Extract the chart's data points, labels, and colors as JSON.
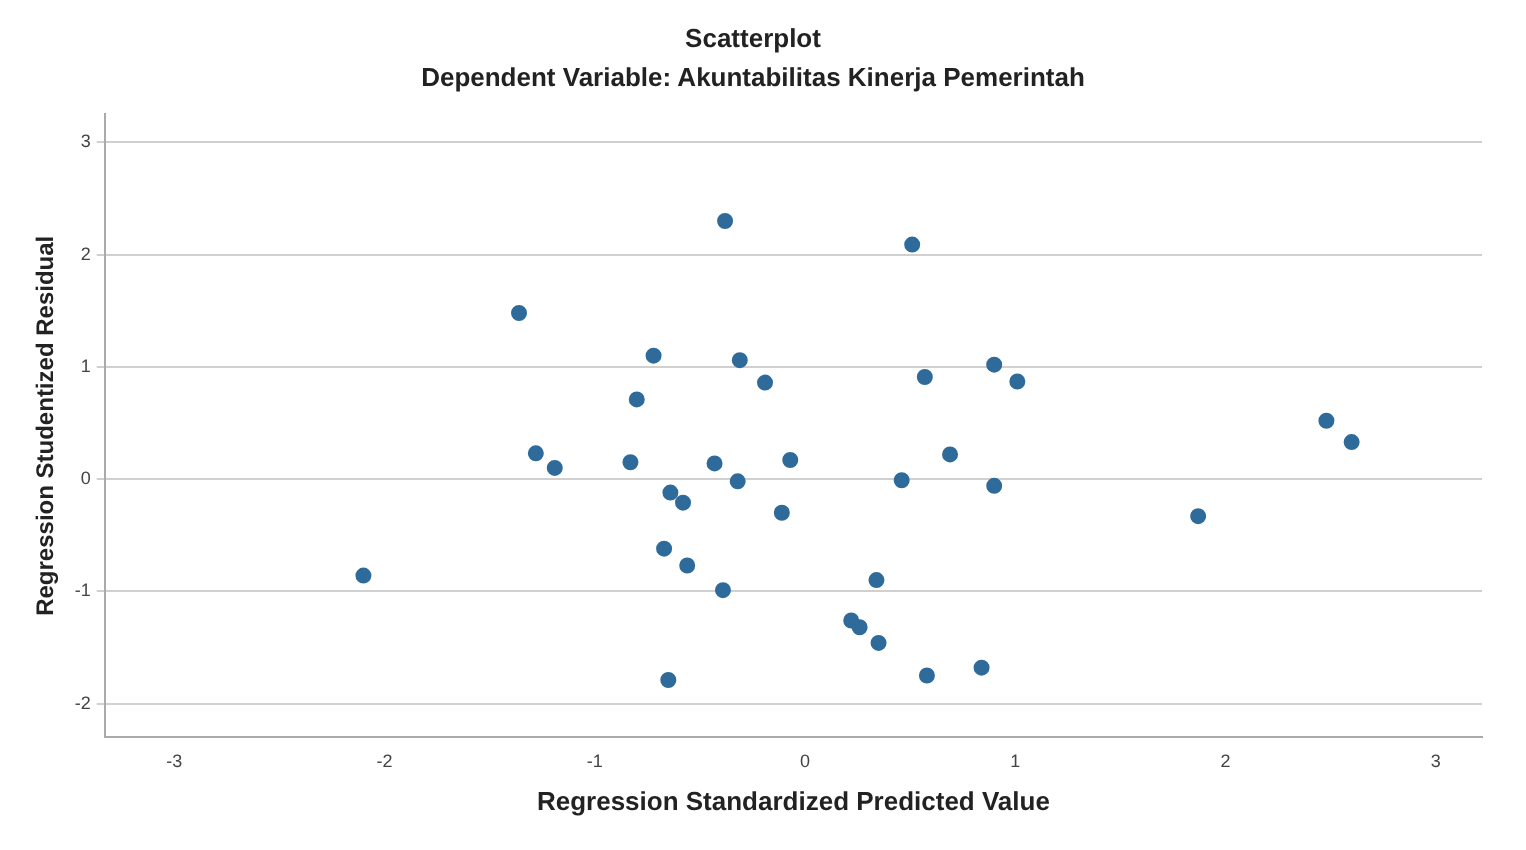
{
  "chart_data": {
    "type": "scatter",
    "title": "Scatterplot",
    "subtitle": "Dependent Variable: Akuntabilitas Kinerja Pemerintah",
    "xlabel": "Regression Standardized Predicted Value",
    "ylabel": "Regression Studentized Residual",
    "xlim": [
      -3.33,
      3.22
    ],
    "ylim": [
      -2.3,
      3.25
    ],
    "xticks": [
      -3,
      -2,
      -1,
      0,
      1,
      2,
      3
    ],
    "yticks": [
      -2,
      -1,
      0,
      1,
      2,
      3
    ],
    "grid": "y",
    "marker": "circle",
    "legend": false,
    "series": [
      {
        "color": "#2f6b9a",
        "x": [
          -0.38,
          -1.36,
          -0.72,
          -0.31,
          -0.19,
          -0.8,
          -1.28,
          -1.19,
          -0.83,
          -0.43,
          -0.07,
          -0.32,
          -0.64,
          -0.58,
          -0.11,
          -0.67,
          -0.56,
          -0.39,
          -2.1,
          -0.65,
          0.51,
          0.57,
          0.9,
          1.01,
          0.69,
          0.46,
          0.9,
          1.87,
          2.48,
          2.6,
          0.34,
          0.22,
          0.26,
          0.35,
          0.58,
          0.84
        ],
        "values": [
          2.3,
          1.48,
          1.1,
          1.06,
          0.86,
          0.71,
          0.23,
          0.1,
          0.15,
          0.14,
          0.17,
          -0.02,
          -0.12,
          -0.21,
          -0.3,
          -0.62,
          -0.77,
          -0.99,
          -0.86,
          -1.79,
          2.09,
          0.91,
          1.02,
          0.87,
          0.22,
          -0.01,
          -0.06,
          -0.33,
          0.52,
          0.33,
          -0.9,
          -1.26,
          -1.32,
          -1.46,
          -1.75,
          -1.68
        ]
      }
    ]
  }
}
